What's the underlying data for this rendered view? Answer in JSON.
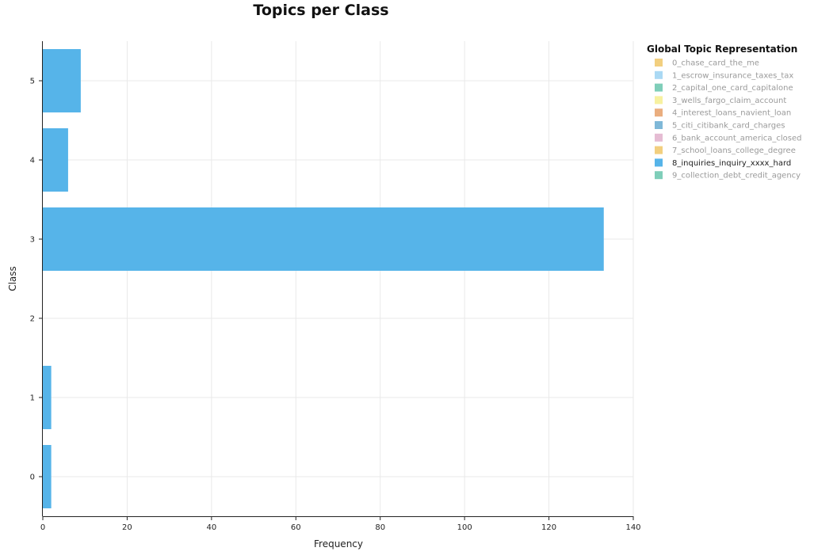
{
  "chart_data": {
    "type": "bar",
    "orientation": "horizontal",
    "title": "Topics per Class",
    "xlabel": "Frequency",
    "ylabel": "Class",
    "xlim": [
      0,
      140
    ],
    "ylim": [
      -0.5,
      5.5
    ],
    "x_ticks": [
      0,
      20,
      40,
      60,
      80,
      100,
      120,
      140
    ],
    "categories": [
      "0",
      "1",
      "2",
      "3",
      "4",
      "5"
    ],
    "grid": true,
    "legend_title": "Global Topic Representation",
    "legend_placement": "right",
    "series": [
      {
        "name": "0_chase_card_the_me",
        "color": "#E69F00",
        "visible": false,
        "values": [
          0,
          0,
          0,
          0,
          0,
          0
        ]
      },
      {
        "name": "1_escrow_insurance_taxes_tax",
        "color": "#56B4E9",
        "visible": false,
        "values": [
          0,
          0,
          0,
          0,
          0,
          0
        ]
      },
      {
        "name": "2_capital_one_card_capitalone",
        "color": "#009E73",
        "visible": false,
        "values": [
          0,
          0,
          0,
          0,
          0,
          0
        ]
      },
      {
        "name": "3_wells_fargo_claim_account",
        "color": "#F0E442",
        "visible": false,
        "values": [
          0,
          0,
          0,
          0,
          0,
          0
        ]
      },
      {
        "name": "4_interest_loans_navient_loan",
        "color": "#D55E00",
        "visible": false,
        "values": [
          0,
          0,
          0,
          0,
          0,
          0
        ]
      },
      {
        "name": "5_citi_citibank_card_charges",
        "color": "#0072B2",
        "visible": false,
        "values": [
          0,
          0,
          0,
          0,
          0,
          0
        ]
      },
      {
        "name": "6_bank_account_america_closed",
        "color": "#CC79A7",
        "visible": false,
        "values": [
          0,
          0,
          0,
          0,
          0,
          0
        ]
      },
      {
        "name": "7_school_loans_college_degree",
        "color": "#E69F00",
        "visible": false,
        "values": [
          0,
          0,
          0,
          0,
          0,
          0
        ]
      },
      {
        "name": "8_inquiries_inquiry_xxxx_hard",
        "color": "#56B4E9",
        "visible": true,
        "values": [
          2,
          2,
          0,
          133,
          6,
          9
        ]
      },
      {
        "name": "9_collection_debt_credit_agency",
        "color": "#009E73",
        "visible": false,
        "values": [
          0,
          0,
          0,
          0,
          0,
          0
        ]
      }
    ]
  }
}
